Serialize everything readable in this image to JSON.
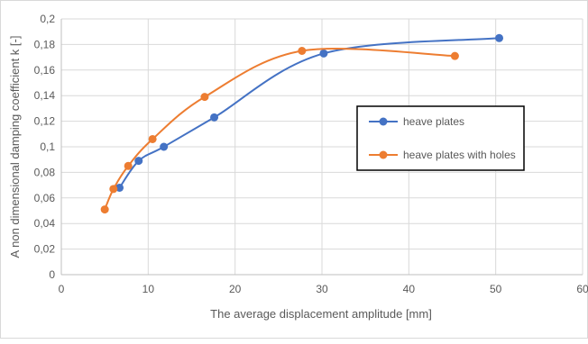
{
  "chart_data": {
    "type": "scatter",
    "title": "",
    "xlabel": "The average displacement amplitude [mm]",
    "ylabel": "A non dimensional damping coefficient k [-]",
    "xlim": [
      0,
      60
    ],
    "ylim": [
      0,
      0.2
    ],
    "x_ticks": [
      0,
      10,
      20,
      30,
      40,
      50,
      60
    ],
    "y_ticks": [
      0,
      0.02,
      0.04,
      0.06,
      0.08,
      0.1,
      0.12,
      0.14,
      0.16,
      0.18,
      0.2
    ],
    "x_tick_labels": [
      "0",
      "10",
      "20",
      "30",
      "40",
      "50",
      "60"
    ],
    "y_tick_labels": [
      "0",
      "0,02",
      "0,04",
      "0,06",
      "0,08",
      "0,1",
      "0,12",
      "0,14",
      "0,16",
      "0,18",
      "0,2"
    ],
    "grid": true,
    "smoothed_lines": true,
    "legend_position": "right",
    "series": [
      {
        "name": "heave plates",
        "color": "#4472c4",
        "points": [
          [
            6.7,
            0.068
          ],
          [
            8.9,
            0.089
          ],
          [
            11.8,
            0.1
          ],
          [
            17.6,
            0.123
          ],
          [
            30.2,
            0.173
          ],
          [
            50.4,
            0.185
          ]
        ]
      },
      {
        "name": "heave plates with holes",
        "color": "#ed7d31",
        "points": [
          [
            5.0,
            0.051
          ],
          [
            6.0,
            0.067
          ],
          [
            7.7,
            0.085
          ],
          [
            10.5,
            0.106
          ],
          [
            16.5,
            0.139
          ],
          [
            27.7,
            0.175
          ],
          [
            45.3,
            0.171
          ]
        ]
      }
    ]
  }
}
